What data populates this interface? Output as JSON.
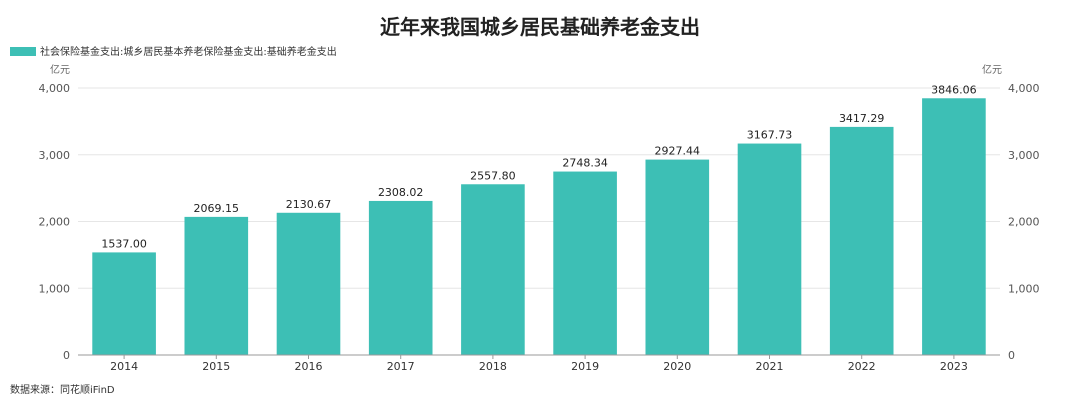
{
  "chart_data": {
    "type": "bar",
    "title": "近年来我国城乡居民基础养老金支出",
    "series": [
      {
        "name": "社会保险基金支出:城乡居民基本养老保险基金支出:基础养老金支出",
        "values": [
          1537.0,
          2069.15,
          2130.67,
          2308.02,
          2557.8,
          2748.34,
          2927.44,
          3167.73,
          3417.29,
          3846.06
        ],
        "labels": [
          "1537.00",
          "2069.15",
          "2130.67",
          "2308.02",
          "2557.80",
          "2748.34",
          "2927.44",
          "3167.73",
          "3417.29",
          "3846.06"
        ]
      }
    ],
    "categories": [
      "2014",
      "2015",
      "2016",
      "2017",
      "2018",
      "2019",
      "2020",
      "2021",
      "2022",
      "2023"
    ],
    "ylim": [
      0,
      4000
    ],
    "yticks": [
      0,
      1000,
      2000,
      3000,
      4000
    ],
    "ytick_labels": [
      "0",
      "1,000",
      "2,000",
      "3,000",
      "4,000"
    ],
    "unit_left": "亿元",
    "unit_right": "亿元",
    "grid": true,
    "legend_position": "top-left",
    "source": "数据来源：同花顺iFinD",
    "colors": {
      "bar": "#3dbfb5"
    }
  }
}
